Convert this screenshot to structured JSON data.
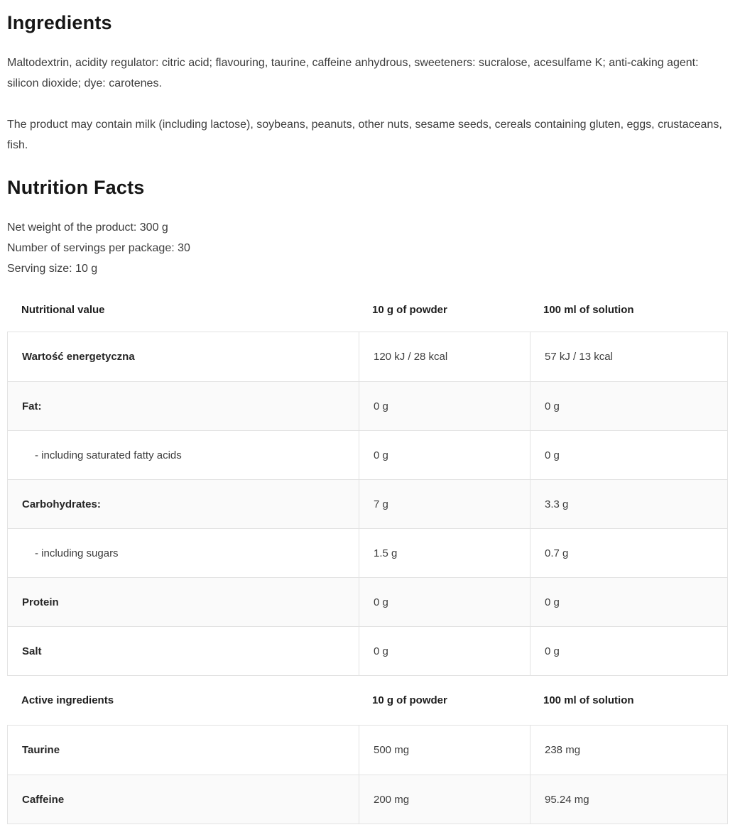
{
  "ingredients": {
    "heading": "Ingredients",
    "composition": "Maltodextrin, acidity regulator: citric acid; flavouring, taurine, caffeine anhydrous, sweeteners: sucralose, acesulfame K; anti-caking agent: silicon dioxide; dye: carotenes.",
    "allergens": "The product may contain milk (including lactose), soybeans, peanuts, other nuts, sesame seeds, cereals containing gluten, eggs, crustaceans, fish."
  },
  "nutrition": {
    "heading": "Nutrition Facts",
    "net_weight": "Net weight of the product: 300 g",
    "servings": "Number of servings per package: 30",
    "serving_size": "Serving size: 10 g",
    "table": {
      "header": [
        "Nutritional value",
        "10 g of powder",
        "100 ml of solution"
      ],
      "rows": [
        {
          "label": "Wartość energetyczna",
          "powder": "120 kJ / 28 kcal",
          "solution": "57 kJ / 13 kcal"
        },
        {
          "label": "Fat:",
          "powder": "0 g",
          "solution": "0 g"
        },
        {
          "label": "- including saturated fatty acids",
          "powder": "0 g",
          "solution": "0 g"
        },
        {
          "label": "Carbohydrates:",
          "powder": "7 g",
          "solution": "3.3 g"
        },
        {
          "label": "- including sugars",
          "powder": "1.5 g",
          "solution": "0.7 g"
        },
        {
          "label": "Protein",
          "powder": "0 g",
          "solution": "0 g"
        },
        {
          "label": "Salt",
          "powder": "0 g",
          "solution": "0 g"
        }
      ],
      "active_header": [
        "Active ingredients",
        "10 g of powder",
        "100 ml of solution"
      ],
      "active_rows": [
        {
          "label": "Taurine",
          "powder": "500 mg",
          "solution": "238 mg"
        },
        {
          "label": "Caffeine",
          "powder": "200 mg",
          "solution": "95.24 mg"
        }
      ]
    }
  },
  "colors": {
    "heading_text": "#161616",
    "body_text": "#3d3d3d",
    "table_border": "#e3e3e3",
    "row_alt_background": "#fafafa"
  }
}
